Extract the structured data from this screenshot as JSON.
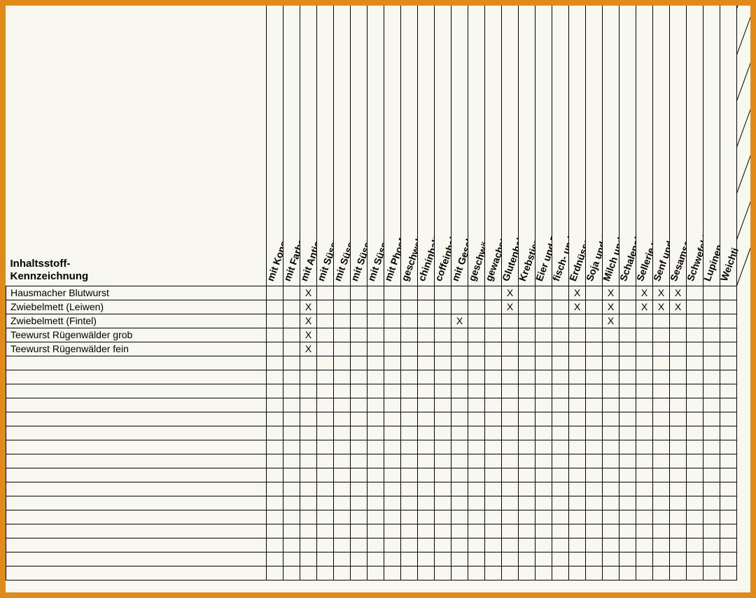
{
  "frame_color": "#e08a1a",
  "background_color": "#f8f8f0",
  "corner_title_line1": "Inhaltsstoff-",
  "corner_title_line2": "Kennzeichnung",
  "mark": "X",
  "columns": [
    "mit Konservierungsstoff",
    "mit Farbstoff",
    "mit Antioxidationsmittel",
    "mit Süssungsmittel Saccharin",
    "mit Süssungsmittel Cyclamat",
    "mit Süssungsmittel Aspartam, enth. Phenylalaninquelle",
    "mit Süssungsmittel Acesulfam",
    "mit Phosfelt",
    "geschwelt",
    "chininhaltig",
    "coffeinhaltig",
    "mit Geschmacksverstärker",
    "geschwärzt",
    "gewachst",
    "Glutenhaltig",
    "Krebstiere",
    "Eier und Eierzeugnisse",
    "fisch- und Fischerzeugnisse",
    "Erdnüsse und Ernusserzeugnisse",
    "Soja und Sojaerzeugnisse",
    "Milch und Milcherzeugnisse",
    "Schalenobst (Nüsse)",
    "Sellerie und Sellerieerzeugnisse",
    "Senf und Senferzeugnisse",
    "Sesamsamen",
    "Schwefeldioxid und Sufide",
    "Lupinen",
    "Weichti"
  ],
  "rows": [
    {
      "label": "Hausmacher Blutwurst",
      "x": [
        2,
        14,
        18,
        20,
        22,
        23,
        24
      ]
    },
    {
      "label": "Zwiebelmett (Leiwen)",
      "x": [
        2,
        14,
        18,
        20,
        22,
        23,
        24
      ]
    },
    {
      "label": "Zwiebelmett (Fintel)",
      "x": [
        2,
        11,
        20
      ]
    },
    {
      "label": "Teewurst Rügenwälder grob",
      "x": [
        2
      ]
    },
    {
      "label": "Teewurst Rügenwälder fein",
      "x": [
        2
      ]
    },
    {
      "label": "",
      "x": []
    },
    {
      "label": "",
      "x": []
    },
    {
      "label": "",
      "x": []
    },
    {
      "label": "",
      "x": []
    },
    {
      "label": "",
      "x": []
    },
    {
      "label": "",
      "x": []
    },
    {
      "label": "",
      "x": []
    },
    {
      "label": "",
      "x": []
    },
    {
      "label": "",
      "x": []
    },
    {
      "label": "",
      "x": []
    },
    {
      "label": "",
      "x": []
    },
    {
      "label": "",
      "x": []
    },
    {
      "label": "",
      "x": []
    },
    {
      "label": "",
      "x": []
    },
    {
      "label": "",
      "x": []
    },
    {
      "label": "",
      "x": []
    }
  ]
}
